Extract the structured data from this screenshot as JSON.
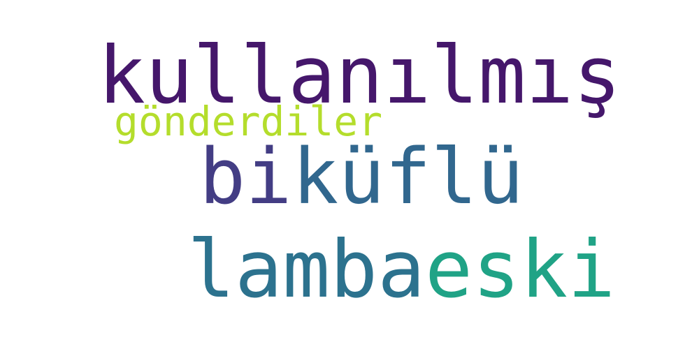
{
  "words": [
    {
      "text": "kullanılmış",
      "color": "#45176b"
    },
    {
      "text": "gönderdiler",
      "color": "#b4dd2c"
    },
    {
      "text": "bi",
      "color": "#433d84"
    },
    {
      "text": "küflü",
      "color": "#31678e"
    },
    {
      "text": "lamba",
      "color": "#2c728e"
    },
    {
      "text": "eski",
      "color": "#20a386"
    }
  ]
}
